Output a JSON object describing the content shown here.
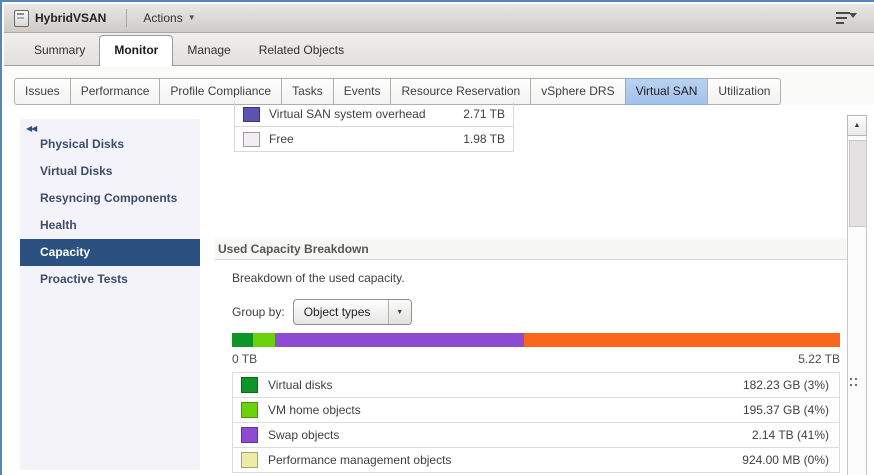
{
  "titlebar": {
    "object_name": "HybridVSAN",
    "actions_label": "Actions"
  },
  "main_tabs": {
    "items": [
      {
        "label": "Summary",
        "active": false
      },
      {
        "label": "Monitor",
        "active": true
      },
      {
        "label": "Manage",
        "active": false
      },
      {
        "label": "Related Objects",
        "active": false
      }
    ]
  },
  "sub_tabs": {
    "items": [
      {
        "label": "Issues",
        "active": false
      },
      {
        "label": "Performance",
        "active": false
      },
      {
        "label": "Profile Compliance",
        "active": false
      },
      {
        "label": "Tasks",
        "active": false
      },
      {
        "label": "Events",
        "active": false
      },
      {
        "label": "Resource Reservation",
        "active": false
      },
      {
        "label": "vSphere DRS",
        "active": false
      },
      {
        "label": "Virtual SAN",
        "active": true
      },
      {
        "label": "Utilization",
        "active": false
      }
    ]
  },
  "sidebar": {
    "items": [
      {
        "label": "Physical Disks",
        "selected": false
      },
      {
        "label": "Virtual Disks",
        "selected": false
      },
      {
        "label": "Resyncing Components",
        "selected": false
      },
      {
        "label": "Health",
        "selected": false
      },
      {
        "label": "Capacity",
        "selected": true
      },
      {
        "label": "Proactive Tests",
        "selected": false
      }
    ]
  },
  "capacity_overview": {
    "rows": [
      {
        "label": "Virtual SAN system overhead",
        "value": "2.71 TB",
        "swatch_color": "#5b54b0"
      },
      {
        "label": "Free",
        "value": "1.98 TB",
        "swatch_color": "#f3eef5"
      }
    ]
  },
  "breakdown": {
    "title": "Used Capacity Breakdown",
    "description": "Breakdown of the used capacity.",
    "group_by_label": "Group by:",
    "group_by_value": "Object types",
    "bar": {
      "start_label": "0 TB",
      "end_label": "5.22 TB",
      "segments": [
        {
          "name": "Virtual disks",
          "color": "#0d9528",
          "percent": 3.4
        },
        {
          "name": "VM home objects",
          "color": "#6bd30e",
          "percent": 3.7
        },
        {
          "name": "Swap objects",
          "color": "#8c4bd2",
          "percent": 41.0
        },
        {
          "name": "Virtual SAN system overhead",
          "color": "#f9671d",
          "percent": 51.9
        }
      ]
    },
    "legend": [
      {
        "label": "Virtual disks",
        "value": "182.23 GB (3%)",
        "swatch_color": "#0d9528"
      },
      {
        "label": "VM home objects",
        "value": "195.37 GB (4%)",
        "swatch_color": "#6bd30e"
      },
      {
        "label": "Swap objects",
        "value": "2.14 TB (41%)",
        "swatch_color": "#8c4bd2"
      },
      {
        "label": "Performance management objects",
        "value": "924.00 MB (0%)",
        "swatch_color": "#eeeba4"
      }
    ]
  }
}
